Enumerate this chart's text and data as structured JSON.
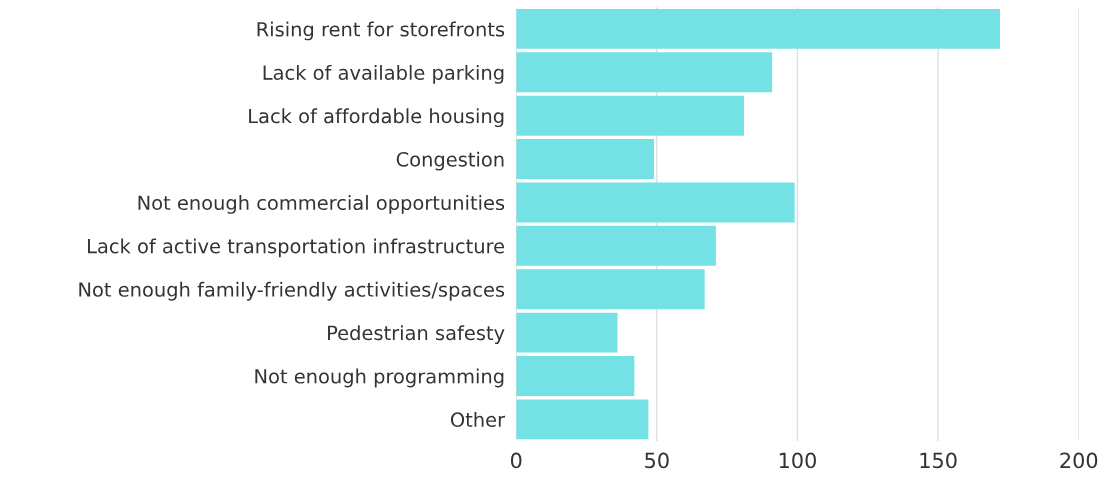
{
  "chart_data": {
    "type": "bar",
    "orientation": "horizontal",
    "categories": [
      "Rising rent for storefronts",
      "Lack of available parking",
      "Lack of affordable housing",
      "Congestion",
      "Not enough commercial opportunities",
      "Lack of active transportation infrastructure",
      "Not enough family-friendly activities/spaces",
      "Pedestrian safesty",
      "Not enough programming",
      "Other"
    ],
    "values": [
      172,
      91,
      81,
      49,
      99,
      71,
      67,
      36,
      42,
      47
    ],
    "color": "#74e2e5",
    "xlim": [
      0,
      200
    ],
    "xticks": [
      0,
      50,
      100,
      150,
      200
    ],
    "grid": "x"
  }
}
